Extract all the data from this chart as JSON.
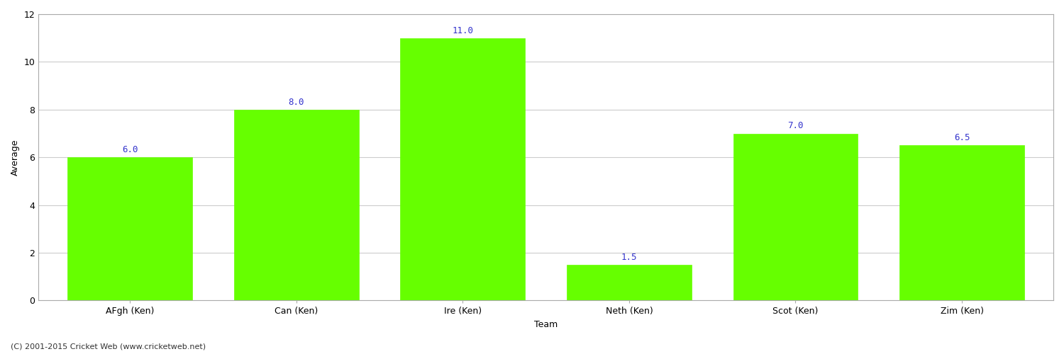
{
  "categories": [
    "AFgh (Ken)",
    "Can (Ken)",
    "Ire (Ken)",
    "Neth (Ken)",
    "Scot (Ken)",
    "Zim (Ken)"
  ],
  "values": [
    6.0,
    8.0,
    11.0,
    1.5,
    7.0,
    6.5
  ],
  "bar_color": "#66ff00",
  "bar_edge_color": "#66ff00",
  "label_color": "#3333cc",
  "xlabel": "Team",
  "ylabel": "Average",
  "ylim": [
    0,
    12
  ],
  "yticks": [
    0,
    2,
    4,
    6,
    8,
    10,
    12
  ],
  "grid_color": "#cccccc",
  "background_color": "#ffffff",
  "axis_label_fontsize": 9,
  "tick_fontsize": 9,
  "annotation_fontsize": 9,
  "footer_text": "(C) 2001-2015 Cricket Web (www.cricketweb.net)",
  "footer_fontsize": 8,
  "bar_width": 0.75,
  "spine_color": "#aaaaaa"
}
